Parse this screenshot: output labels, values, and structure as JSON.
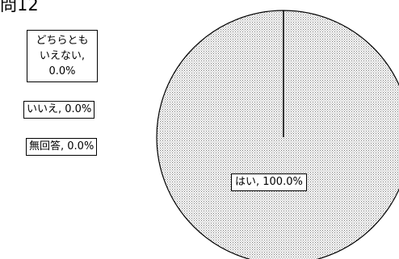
{
  "title": "問12",
  "chart_data": {
    "type": "pie",
    "title": "問12",
    "slices": [
      {
        "label": "はい",
        "value": 100.0,
        "display": "100.0%"
      },
      {
        "label": "どちらともいえない",
        "value": 0.0,
        "display": "0.0%"
      },
      {
        "label": "いいえ",
        "value": 0.0,
        "display": "0.0%"
      },
      {
        "label": "無回答",
        "value": 0.0,
        "display": "0.0%"
      }
    ],
    "label_texts": {
      "hai": "はい, 100.0%",
      "dochira_line1": "どちらとも",
      "dochira_line2": "いえない,",
      "dochira_line3": "0.0%",
      "iie": "いいえ, 0.0%",
      "mukaito": "無回答, 0.0%"
    },
    "fill_pattern": "dotted",
    "colors": {
      "outline": "#000000",
      "fill_dot": "#7a7a7a",
      "background": "#ffffff"
    }
  }
}
